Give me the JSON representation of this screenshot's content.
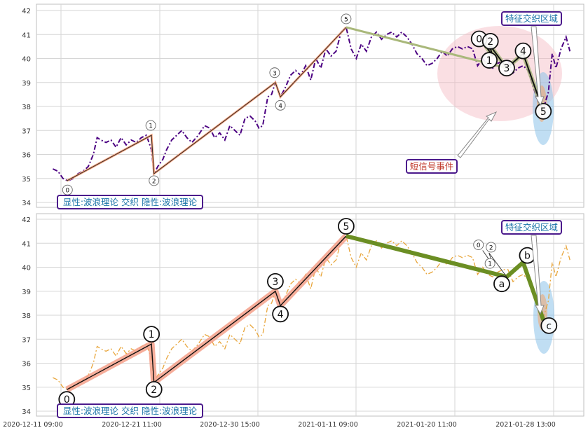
{
  "chart_data": [
    {
      "type": "line",
      "panel": "top",
      "ylim": [
        33.8,
        42.2
      ],
      "yticks": [
        34,
        35,
        36,
        37,
        38,
        39,
        40,
        41,
        42
      ],
      "x_tick_labels": [
        "2020-12-11 09:00",
        "2020-12-21 11:00",
        "2020-12-30 15:00",
        "2021-01-11 09:00",
        "2021-01-20 11:00",
        "2021-01-28 13:00"
      ],
      "price_series": {
        "style": "dash-dot",
        "color": "#4b0082",
        "points": [
          [
            0.0,
            35.4
          ],
          [
            0.4,
            35.3
          ],
          [
            0.8,
            35.0
          ],
          [
            1.2,
            34.9
          ],
          [
            1.6,
            35.0
          ],
          [
            2.0,
            35.2
          ],
          [
            2.4,
            35.3
          ],
          [
            2.8,
            35.5
          ],
          [
            3.2,
            36.0
          ],
          [
            3.5,
            36.7
          ],
          [
            3.8,
            36.6
          ],
          [
            4.2,
            36.5
          ],
          [
            4.6,
            36.6
          ],
          [
            5.0,
            36.3
          ],
          [
            5.4,
            36.7
          ],
          [
            5.8,
            36.4
          ],
          [
            6.2,
            36.6
          ],
          [
            6.6,
            36.5
          ],
          [
            7.0,
            36.7
          ],
          [
            7.4,
            36.8
          ],
          [
            7.8,
            36.2
          ],
          [
            8.0,
            35.2
          ],
          [
            8.3,
            35.5
          ],
          [
            8.7,
            35.8
          ],
          [
            9.0,
            36.2
          ],
          [
            9.4,
            36.6
          ],
          [
            9.8,
            36.8
          ],
          [
            10.2,
            37.0
          ],
          [
            10.6,
            36.7
          ],
          [
            11.0,
            36.5
          ],
          [
            11.5,
            36.8
          ],
          [
            12.0,
            37.2
          ],
          [
            12.4,
            37.1
          ],
          [
            12.8,
            36.7
          ],
          [
            13.2,
            36.9
          ],
          [
            13.6,
            36.6
          ],
          [
            14.0,
            37.2
          ],
          [
            14.4,
            37.0
          ],
          [
            14.8,
            36.8
          ],
          [
            15.2,
            37.5
          ],
          [
            15.6,
            37.6
          ],
          [
            16.0,
            37.4
          ],
          [
            16.3,
            37.1
          ],
          [
            16.6,
            37.2
          ],
          [
            17.0,
            38.4
          ],
          [
            17.3,
            38.5
          ],
          [
            17.6,
            39.0
          ],
          [
            18.0,
            38.4
          ],
          [
            18.4,
            38.8
          ],
          [
            18.8,
            39.3
          ],
          [
            19.2,
            39.5
          ],
          [
            19.6,
            39.3
          ],
          [
            20.0,
            39.7
          ],
          [
            20.4,
            39.1
          ],
          [
            20.8,
            40.0
          ],
          [
            21.2,
            39.6
          ],
          [
            21.6,
            40.4
          ],
          [
            22.0,
            40.1
          ],
          [
            22.4,
            40.3
          ],
          [
            22.8,
            41.1
          ],
          [
            23.2,
            41.3
          ],
          [
            23.6,
            40.4
          ],
          [
            24.0,
            40.0
          ],
          [
            24.4,
            40.6
          ],
          [
            24.8,
            40.3
          ],
          [
            25.2,
            40.9
          ],
          [
            25.6,
            41.1
          ],
          [
            26.0,
            40.8
          ],
          [
            26.4,
            41.0
          ],
          [
            26.8,
            41.1
          ],
          [
            27.2,
            40.9
          ],
          [
            27.6,
            41.1
          ],
          [
            28.0,
            40.9
          ],
          [
            28.4,
            40.6
          ],
          [
            28.8,
            40.2
          ],
          [
            29.2,
            40.0
          ],
          [
            29.6,
            39.7
          ],
          [
            30.0,
            39.8
          ],
          [
            30.4,
            40.0
          ],
          [
            30.8,
            40.3
          ],
          [
            31.2,
            40.1
          ],
          [
            31.6,
            40.4
          ],
          [
            32.0,
            40.5
          ],
          [
            32.4,
            40.4
          ],
          [
            32.8,
            40.5
          ],
          [
            33.2,
            40.4
          ],
          [
            33.6,
            39.7
          ],
          [
            34.0,
            40.0
          ],
          [
            34.4,
            39.7
          ],
          [
            34.8,
            39.6
          ],
          [
            35.2,
            39.8
          ],
          [
            35.6,
            39.9
          ],
          [
            36.0,
            39.9
          ],
          [
            36.4,
            39.4
          ],
          [
            36.8,
            39.6
          ],
          [
            37.2,
            39.7
          ],
          [
            37.6,
            39.5
          ],
          [
            38.0,
            38.8
          ],
          [
            38.4,
            38.2
          ],
          [
            38.8,
            37.9
          ],
          [
            39.2,
            38.6
          ],
          [
            39.5,
            40.2
          ],
          [
            39.8,
            39.6
          ],
          [
            40.2,
            40.4
          ],
          [
            40.6,
            40.9
          ],
          [
            40.9,
            40.3
          ]
        ]
      },
      "wave_markers": [
        {
          "label": "0",
          "x": 1.1,
          "y": 34.9,
          "style": "small"
        },
        {
          "label": "1",
          "x": 7.8,
          "y": 36.8,
          "style": "small"
        },
        {
          "label": "2",
          "x": 8.0,
          "y": 35.2,
          "style": "small"
        },
        {
          "label": "3",
          "x": 17.6,
          "y": 39.0,
          "style": "small"
        },
        {
          "label": "4",
          "x": 18.0,
          "y": 38.4,
          "style": "small"
        },
        {
          "label": "5",
          "x": 23.2,
          "y": 41.3,
          "style": "small"
        },
        {
          "label": "0",
          "x": 34.0,
          "y": 40.7,
          "style": "large"
        },
        {
          "label": "2",
          "x": 34.5,
          "y": 40.6,
          "style": "large"
        },
        {
          "label": "1",
          "x": 34.8,
          "y": 40.1,
          "style": "large"
        },
        {
          "label": "3",
          "x": 35.9,
          "y": 39.6,
          "style": "large"
        },
        {
          "label": "4",
          "x": 37.2,
          "y": 40.2,
          "style": "large"
        },
        {
          "label": "5",
          "x": 38.8,
          "y": 37.8,
          "style": "large"
        }
      ],
      "annotations": {
        "bottom_label": "显性:波浪理论 交织 隐性:波浪理论",
        "event_label": "短信号事件",
        "zone_label": "特征交织区域"
      }
    },
    {
      "type": "line",
      "panel": "bottom",
      "ylim": [
        33.8,
        42.2
      ],
      "yticks": [
        34,
        35,
        36,
        37,
        38,
        39,
        40,
        41,
        42
      ],
      "x_tick_labels": [
        "2020-12-11 09:00",
        "2020-12-21 11:00",
        "2020-12-30 15:00",
        "2021-01-11 09:00",
        "2021-01-20 11:00",
        "2021-01-28 13:00"
      ],
      "price_series": {
        "style": "dash-dot",
        "color": "#e8a53a",
        "same_as": "top"
      },
      "wave_markers": [
        {
          "label": "0",
          "x": 1.1,
          "y": 34.9,
          "style": "large"
        },
        {
          "label": "1",
          "x": 7.8,
          "y": 36.8,
          "style": "large"
        },
        {
          "label": "2",
          "x": 8.0,
          "y": 35.2,
          "style": "large"
        },
        {
          "label": "3",
          "x": 17.6,
          "y": 39.0,
          "style": "large"
        },
        {
          "label": "4",
          "x": 18.0,
          "y": 38.4,
          "style": "large"
        },
        {
          "label": "5",
          "x": 23.2,
          "y": 41.3,
          "style": "large"
        },
        {
          "label": "0",
          "x": 34.0,
          "y": 40.7,
          "style": "small"
        },
        {
          "label": "2",
          "x": 34.5,
          "y": 40.6,
          "style": "small"
        },
        {
          "label": "1",
          "x": 34.8,
          "y": 40.1,
          "style": "small"
        },
        {
          "label": "a",
          "x": 35.9,
          "y": 39.6,
          "style": "large"
        },
        {
          "label": "b",
          "x": 37.2,
          "y": 40.2,
          "style": "large"
        },
        {
          "label": "c",
          "x": 38.8,
          "y": 37.8,
          "style": "large"
        }
      ],
      "annotations": {
        "bottom_label": "显性:波浪理论 交织 隐性:波浪理论",
        "zone_label": "特征交织区域"
      }
    }
  ]
}
